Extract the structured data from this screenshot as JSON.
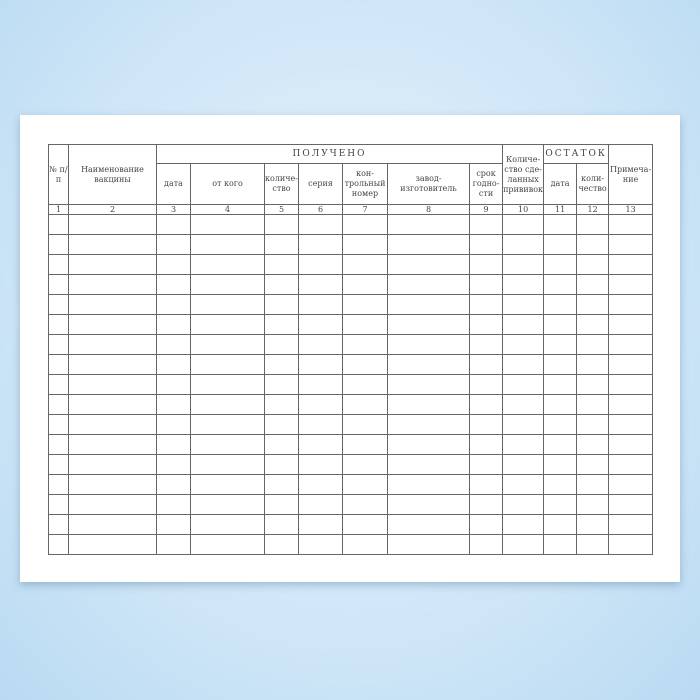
{
  "header": {
    "col1": "№ п/п",
    "col2": "Наименование вакцины",
    "group_received": "ПОЛУЧЕНО",
    "received": [
      "дата",
      "от кого",
      "количе-ство",
      "серия",
      "кон-трольный номер",
      "завод-изготовитель",
      "срок годно-сти"
    ],
    "col10": "Количе-ство сде-ланных прививок",
    "group_remainder": "ОСТАТОК",
    "remainder": [
      "дата",
      "коли-чество"
    ],
    "col13": "Примеча-ние"
  },
  "column_numbers": [
    "1",
    "2",
    "3",
    "4",
    "5",
    "6",
    "7",
    "8",
    "9",
    "10",
    "11",
    "12",
    "13"
  ],
  "empty_rows": 17,
  "colors": {
    "background": "#cfe6f7",
    "paper": "#ffffff",
    "lines": "#666666"
  }
}
